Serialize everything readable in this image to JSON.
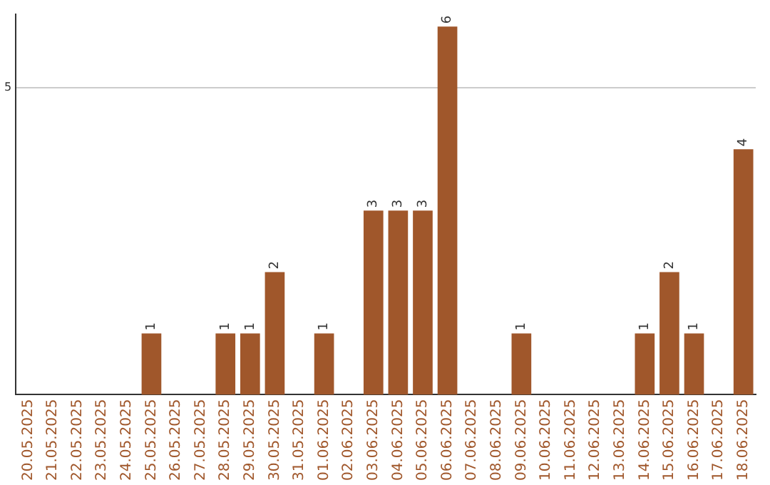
{
  "chart_data": {
    "type": "bar",
    "categories": [
      "20.05.2025",
      "21.05.2025",
      "22.05.2025",
      "23.05.2025",
      "24.05.2025",
      "25.05.2025",
      "26.05.2025",
      "27.05.2025",
      "28.05.2025",
      "29.05.2025",
      "30.05.2025",
      "31.05.2025",
      "01.06.2025",
      "02.06.2025",
      "03.06.2025",
      "04.06.2025",
      "05.06.2025",
      "06.06.2025",
      "07.06.2025",
      "08.06.2025",
      "09.06.2025",
      "10.06.2025",
      "11.06.2025",
      "12.06.2025",
      "13.06.2025",
      "14.06.2025",
      "15.06.2025",
      "16.06.2025",
      "17.06.2025",
      "18.06.2025"
    ],
    "values": [
      0,
      0,
      0,
      0,
      0,
      1,
      0,
      0,
      1,
      1,
      2,
      0,
      1,
      0,
      3,
      3,
      3,
      6,
      0,
      0,
      1,
      0,
      0,
      0,
      0,
      1,
      2,
      1,
      0,
      4
    ],
    "value_labels": [
      null,
      null,
      null,
      null,
      null,
      "1",
      null,
      null,
      "1",
      "1",
      "2",
      null,
      "1",
      null,
      "3",
      "3",
      "3",
      "6",
      null,
      null,
      "1",
      null,
      null,
      null,
      null,
      "1",
      "2",
      "1",
      null,
      "4"
    ],
    "color": "#a0572b",
    "ylim": [
      0,
      6.2
    ],
    "yticks": [
      5
    ],
    "grid": "y"
  }
}
